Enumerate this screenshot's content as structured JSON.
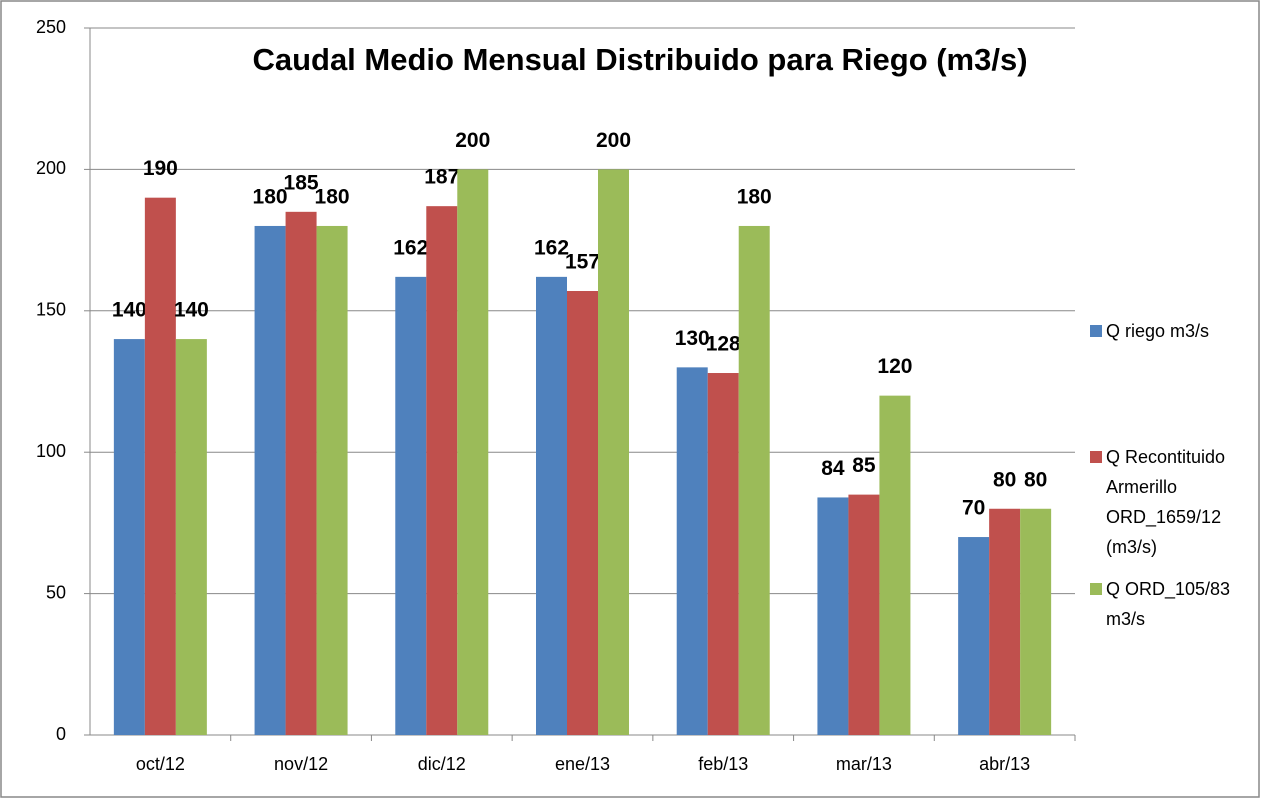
{
  "chart_data": {
    "type": "bar",
    "title": "Caudal Medio Mensual  Distribuido para Riego (m3/s)",
    "categories": [
      "oct/12",
      "nov/12",
      "dic/12",
      "ene/13",
      "feb/13",
      "mar/13",
      "abr/13"
    ],
    "series": [
      {
        "name": "Q riego m3/s",
        "color": "#4f81bd",
        "values": [
          140,
          180,
          162,
          162,
          130,
          84,
          70
        ]
      },
      {
        "name": "Q Recontituido Armerillo ORD_1659/12 (m3/s)",
        "color": "#c0504d",
        "values": [
          190,
          185,
          187,
          157,
          128,
          85,
          80
        ]
      },
      {
        "name": "Q ORD_105/83 m3/s",
        "color": "#9bbb59",
        "values": [
          140,
          180,
          200,
          200,
          180,
          120,
          80
        ]
      }
    ],
    "ylim": [
      0,
      250
    ],
    "yticks": [
      0,
      50,
      100,
      150,
      200,
      250
    ],
    "grid": true,
    "legend": "right"
  }
}
